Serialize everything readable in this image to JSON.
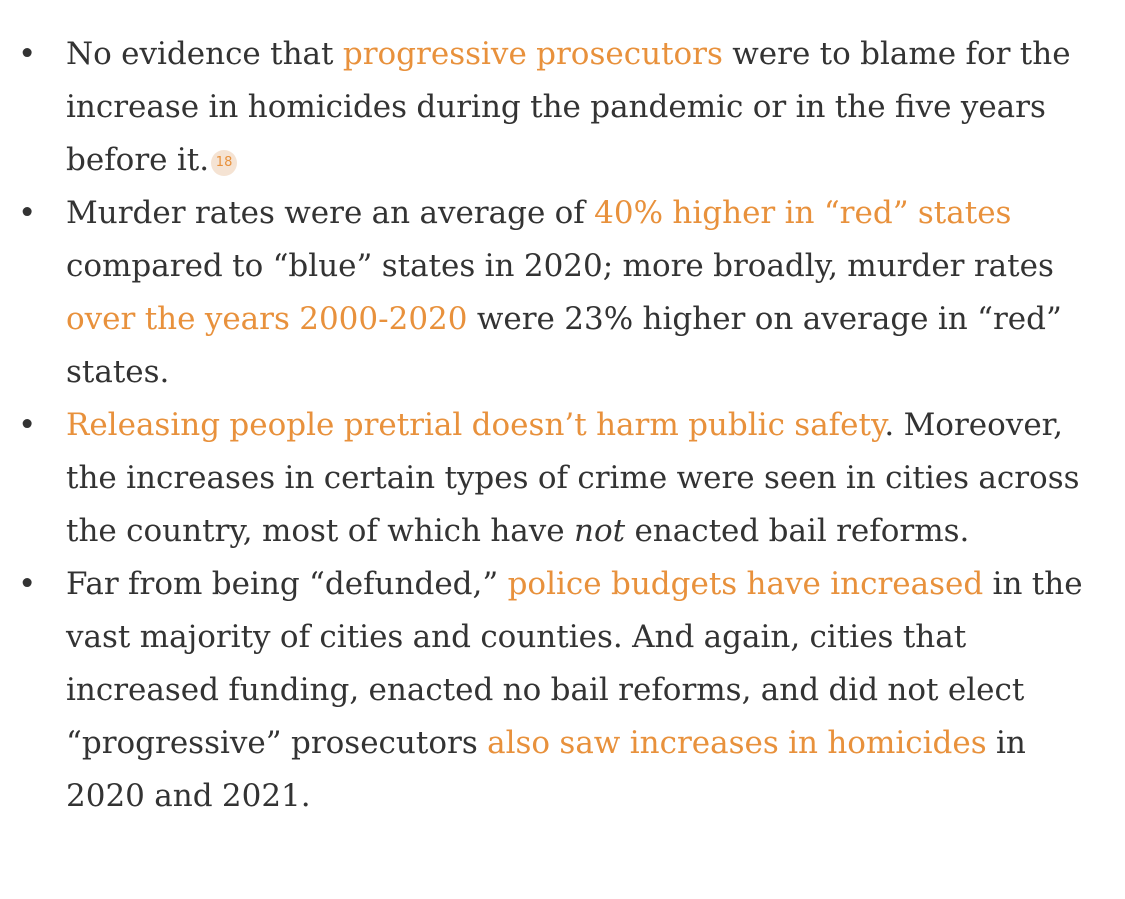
{
  "bullets": [
    {
      "marker": "•",
      "text_1": "No evidence that ",
      "link_1": "progressive prosecutors",
      "text_2": " were to blame for the increase in homicides during the pandemic or in the five years before it.",
      "footnote": "18"
    },
    {
      "marker": "•",
      "text_1": "Murder rates were an average of ",
      "link_1": "40% higher in “red” states",
      "text_2": " compared to “blue” states in 2020; more broadly, murder rates ",
      "link_2": "over the years 2000-2020",
      "text_3": " were 23% higher on average in “red” states."
    },
    {
      "marker": "•",
      "link_1": "Releasing people pretrial doesn’t harm public safety",
      "text_1": ". Moreover, the increases in certain types of crime were seen in cities across the country, most of which have ",
      "emphasis": "not",
      "text_2": " enacted bail reforms."
    },
    {
      "marker": "•",
      "text_1": "Far from being “defunded,” ",
      "link_1": "police budgets have increased",
      "text_2": " in the vast majority of cities and counties. And again, cities that increased funding, enacted no bail reforms, and did not elect “progressive” prosecutors ",
      "link_2": "also saw increases in homicides",
      "text_3": " in 2020 and 2021."
    }
  ],
  "colors": {
    "body_text": "#333333",
    "link": "#e8913c",
    "footnote_bg": "#f5e3d3"
  }
}
